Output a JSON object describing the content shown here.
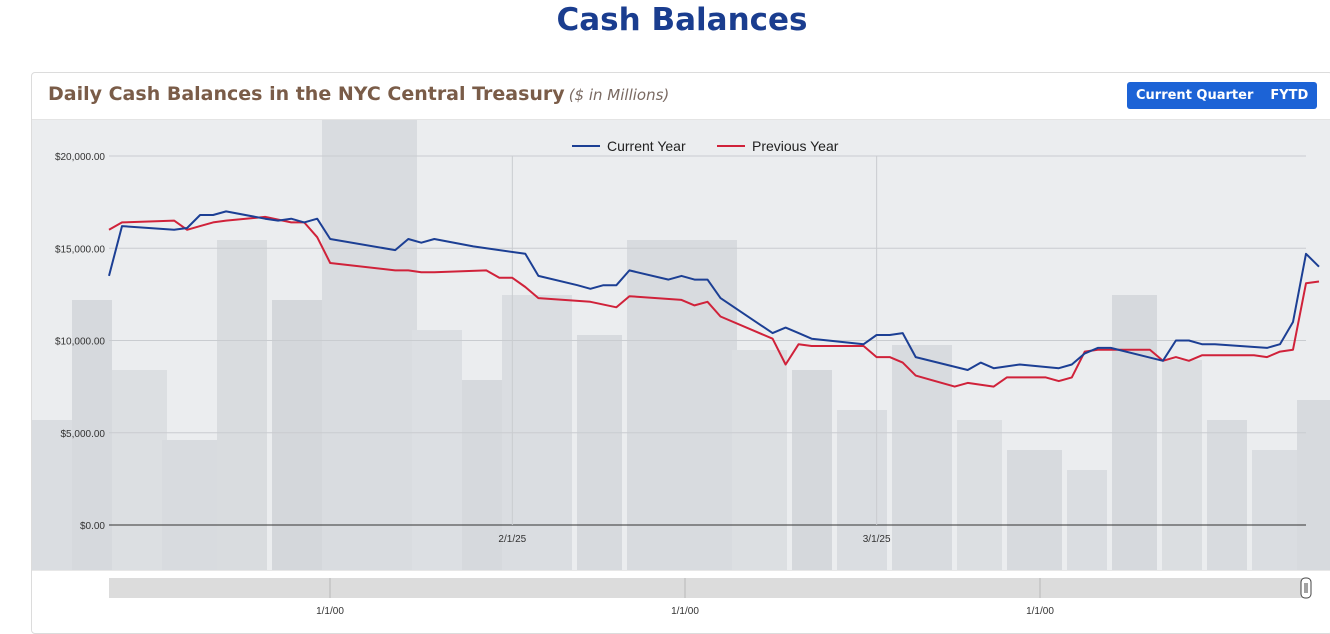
{
  "page": {
    "title": "Cash Balances"
  },
  "card": {
    "title": "Daily Cash Balances in the NYC Central Treasury",
    "unit": "($ in Millions)",
    "toggles": [
      {
        "label": "Current Quarter",
        "active": true
      },
      {
        "label": "FYTD",
        "active": false
      }
    ]
  },
  "colors": {
    "current_year": "#1c3f94",
    "previous_year": "#d0223a",
    "accent": "#1c63d6",
    "title": "#1a3d8f"
  },
  "navigator": {
    "tick_labels": [
      "1/1/00",
      "1/1/00",
      "1/1/00"
    ]
  },
  "chart_data": {
    "type": "line",
    "title": "",
    "xlabel": "",
    "ylabel": "",
    "ylim": [
      0,
      20000
    ],
    "xlim": [
      "2025-01-01",
      "2025-04-03"
    ],
    "y_ticks": [
      0,
      5000,
      10000,
      15000,
      20000
    ],
    "y_tick_labels": [
      "$0.00",
      "$5,000.00",
      "$10,000.00",
      "$15,000.00",
      "$20,000.00"
    ],
    "x_ticks": [
      "2025-02-01",
      "2025-03-01"
    ],
    "x_tick_labels": [
      "2/1/25",
      "3/1/25"
    ],
    "legend_position": "top-center",
    "grid": true,
    "series": [
      {
        "name": "Current Year",
        "color": "#1c3f94",
        "points": [
          [
            "2025-01-01",
            13500
          ],
          [
            "2025-01-02",
            16200
          ],
          [
            "2025-01-06",
            16000
          ],
          [
            "2025-01-07",
            16100
          ],
          [
            "2025-01-08",
            16800
          ],
          [
            "2025-01-09",
            16800
          ],
          [
            "2025-01-10",
            17000
          ],
          [
            "2025-01-13",
            16600
          ],
          [
            "2025-01-14",
            16500
          ],
          [
            "2025-01-15",
            16600
          ],
          [
            "2025-01-16",
            16400
          ],
          [
            "2025-01-17",
            16600
          ],
          [
            "2025-01-18",
            15500
          ],
          [
            "2025-01-23",
            14900
          ],
          [
            "2025-01-24",
            15500
          ],
          [
            "2025-01-25",
            15300
          ],
          [
            "2025-01-26",
            15500
          ],
          [
            "2025-01-29",
            15100
          ],
          [
            "2025-01-30",
            15000
          ],
          [
            "2025-02-02",
            14700
          ],
          [
            "2025-02-03",
            13500
          ],
          [
            "2025-02-06",
            13000
          ],
          [
            "2025-02-07",
            12800
          ],
          [
            "2025-02-08",
            13000
          ],
          [
            "2025-02-09",
            13000
          ],
          [
            "2025-02-10",
            13800
          ],
          [
            "2025-02-13",
            13300
          ],
          [
            "2025-02-14",
            13500
          ],
          [
            "2025-02-15",
            13300
          ],
          [
            "2025-02-16",
            13300
          ],
          [
            "2025-02-17",
            12300
          ],
          [
            "2025-02-21",
            10400
          ],
          [
            "2025-02-22",
            10700
          ],
          [
            "2025-02-23",
            10400
          ],
          [
            "2025-02-24",
            10100
          ],
          [
            "2025-02-28",
            9800
          ],
          [
            "2025-03-01",
            10300
          ],
          [
            "2025-03-02",
            10300
          ],
          [
            "2025-03-03",
            10400
          ],
          [
            "2025-03-04",
            9100
          ],
          [
            "2025-03-08",
            8400
          ],
          [
            "2025-03-09",
            8800
          ],
          [
            "2025-03-10",
            8500
          ],
          [
            "2025-03-12",
            8700
          ],
          [
            "2025-03-15",
            8500
          ],
          [
            "2025-03-16",
            8700
          ],
          [
            "2025-03-17",
            9300
          ],
          [
            "2025-03-18",
            9600
          ],
          [
            "2025-03-19",
            9600
          ],
          [
            "2025-03-23",
            8900
          ],
          [
            "2025-03-24",
            10000
          ],
          [
            "2025-03-25",
            10000
          ],
          [
            "2025-03-26",
            9800
          ],
          [
            "2025-03-27",
            9800
          ],
          [
            "2025-03-31",
            9600
          ],
          [
            "2025-04-01",
            9800
          ],
          [
            "2025-04-02",
            11000
          ],
          [
            "2025-04-03",
            14700
          ],
          [
            "2025-04-04",
            14000
          ]
        ]
      },
      {
        "name": "Previous Year",
        "color": "#d0223a",
        "points": [
          [
            "2025-01-01",
            16000
          ],
          [
            "2025-01-02",
            16400
          ],
          [
            "2025-01-06",
            16500
          ],
          [
            "2025-01-07",
            16000
          ],
          [
            "2025-01-08",
            16200
          ],
          [
            "2025-01-09",
            16400
          ],
          [
            "2025-01-10",
            16500
          ],
          [
            "2025-01-13",
            16700
          ],
          [
            "2025-01-15",
            16400
          ],
          [
            "2025-01-16",
            16400
          ],
          [
            "2025-01-17",
            15600
          ],
          [
            "2025-01-18",
            14200
          ],
          [
            "2025-01-23",
            13800
          ],
          [
            "2025-01-24",
            13800
          ],
          [
            "2025-01-25",
            13700
          ],
          [
            "2025-01-26",
            13700
          ],
          [
            "2025-01-30",
            13800
          ],
          [
            "2025-01-31",
            13400
          ],
          [
            "2025-02-01",
            13400
          ],
          [
            "2025-02-02",
            12900
          ],
          [
            "2025-02-03",
            12300
          ],
          [
            "2025-02-07",
            12100
          ],
          [
            "2025-02-09",
            11800
          ],
          [
            "2025-02-10",
            12400
          ],
          [
            "2025-02-14",
            12200
          ],
          [
            "2025-02-15",
            11900
          ],
          [
            "2025-02-16",
            12100
          ],
          [
            "2025-02-17",
            11300
          ],
          [
            "2025-02-21",
            10100
          ],
          [
            "2025-02-22",
            8700
          ],
          [
            "2025-02-23",
            9800
          ],
          [
            "2025-02-24",
            9700
          ],
          [
            "2025-02-28",
            9700
          ],
          [
            "2025-03-01",
            9100
          ],
          [
            "2025-03-02",
            9100
          ],
          [
            "2025-03-03",
            8800
          ],
          [
            "2025-03-04",
            8100
          ],
          [
            "2025-03-07",
            7500
          ],
          [
            "2025-03-08",
            7700
          ],
          [
            "2025-03-10",
            7500
          ],
          [
            "2025-03-11",
            8000
          ],
          [
            "2025-03-14",
            8000
          ],
          [
            "2025-03-15",
            7800
          ],
          [
            "2025-03-16",
            8000
          ],
          [
            "2025-03-17",
            9400
          ],
          [
            "2025-03-18",
            9500
          ],
          [
            "2025-03-22",
            9500
          ],
          [
            "2025-03-23",
            8900
          ],
          [
            "2025-03-24",
            9100
          ],
          [
            "2025-03-25",
            8900
          ],
          [
            "2025-03-26",
            9200
          ],
          [
            "2025-03-30",
            9200
          ],
          [
            "2025-03-31",
            9100
          ],
          [
            "2025-04-01",
            9400
          ],
          [
            "2025-04-02",
            9500
          ],
          [
            "2025-04-03",
            13100
          ],
          [
            "2025-04-04",
            13200
          ]
        ]
      }
    ]
  }
}
